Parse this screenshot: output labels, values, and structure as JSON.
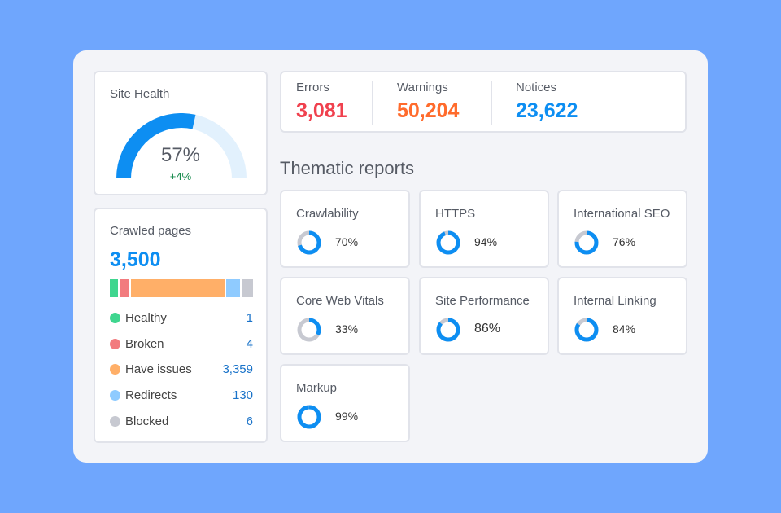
{
  "site_health": {
    "title": "Site Health",
    "value": "57%",
    "delta": "+4%",
    "progress": 0.57
  },
  "crawled": {
    "title": "Crawled pages",
    "total": "3,500",
    "items": [
      {
        "label": "Healthy",
        "count": "1",
        "color": "#3fd68f"
      },
      {
        "label": "Broken",
        "count": "4",
        "color": "#f27b7e"
      },
      {
        "label": "Have issues",
        "count": "3,359",
        "color": "#ffaf68"
      },
      {
        "label": "Redirects",
        "count": "130",
        "color": "#8fcbff"
      },
      {
        "label": "Blocked",
        "count": "6",
        "color": "#c7c9d1"
      }
    ]
  },
  "stats": {
    "errors": {
      "label": "Errors",
      "value": "3,081",
      "color": "#f0414e"
    },
    "warnings": {
      "label": "Warnings",
      "value": "50,204",
      "color": "#ff6b2c"
    },
    "notices": {
      "label": "Notices",
      "value": "23,622",
      "color": "#0d8ef2"
    }
  },
  "thematic": {
    "title": "Thematic reports",
    "reports": [
      {
        "label": "Crawlability",
        "value": "70%",
        "progress": 0.7
      },
      {
        "label": "HTTPS",
        "value": "94%",
        "progress": 0.94
      },
      {
        "label": "International SEO",
        "value": "76%",
        "progress": 0.76
      },
      {
        "label": "Core Web Vitals",
        "value": "33%",
        "progress": 0.33
      },
      {
        "label": "Site Performance",
        "value": "86%",
        "progress": 0.86
      },
      {
        "label": "Internal Linking",
        "value": "84%",
        "progress": 0.84
      },
      {
        "label": "Markup",
        "value": "99%",
        "progress": 0.99
      }
    ]
  },
  "colors": {
    "accent": "#0d8ef2",
    "track": "#c7c9d1",
    "gauge_track": "#e2f1fd"
  }
}
